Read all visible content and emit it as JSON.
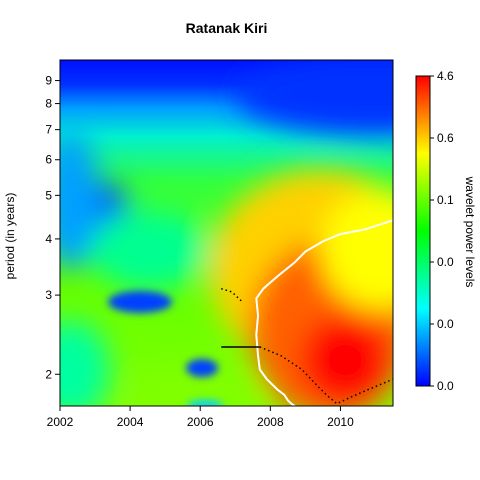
{
  "title": "Ratanak Kiri",
  "chart_data": {
    "type": "heatmap",
    "title": "Ratanak Kiri",
    "xlabel": "",
    "ylabel": "period (in years)",
    "xlim": [
      2002,
      2011.5
    ],
    "ylim": [
      1.7,
      10
    ],
    "yscale": "log",
    "x_ticks": [
      "2002",
      "2004",
      "2006",
      "2008",
      "2010"
    ],
    "y_ticks": [
      "2",
      "3",
      "4",
      "5",
      "6",
      "7",
      "8",
      "9"
    ],
    "legend": {
      "label": "wavelet power levels",
      "ticks": [
        "0.0",
        "0.0",
        "0.0",
        "0.1",
        "0.6",
        "4.6"
      ],
      "colors": [
        "#0000ff",
        "#00ffff",
        "#00ff00",
        "#ffff00",
        "#ff0000"
      ]
    },
    "annotations": {
      "significance_contour": {
        "color": "#ffffff",
        "x": [
          2011.5,
          2010.7,
          2010.0,
          2009.5,
          2009.0,
          2008.7,
          2008.3,
          2008.0,
          2007.8,
          2007.6,
          2007.65,
          2007.6,
          2007.65,
          2007.7,
          2007.9,
          2008.2,
          2008.4,
          2008.5,
          2008.6,
          2008.7
        ],
        "y": [
          4.4,
          4.2,
          4.1,
          3.95,
          3.75,
          3.55,
          3.35,
          3.2,
          3.1,
          2.95,
          2.7,
          2.45,
          2.2,
          2.05,
          1.95,
          1.85,
          1.8,
          1.75,
          1.72,
          1.7
        ]
      },
      "ridge_line_1": {
        "color": "#000000",
        "x": [
          2006.6,
          2007.7
        ],
        "y": [
          2.3,
          2.3
        ]
      },
      "ridge_line_2": {
        "x": [
          2007.7,
          2008.3,
          2008.9,
          2009.3,
          2009.6,
          2009.9,
          2010.3,
          2010.8,
          2011.5
        ],
        "y": [
          2.3,
          2.2,
          2.05,
          1.9,
          1.8,
          1.72,
          1.78,
          1.85,
          1.95
        ]
      },
      "ridge_line_3": {
        "x": [
          2006.6,
          2006.9,
          2007.2
        ],
        "y": [
          3.1,
          3.05,
          2.9
        ]
      }
    }
  }
}
